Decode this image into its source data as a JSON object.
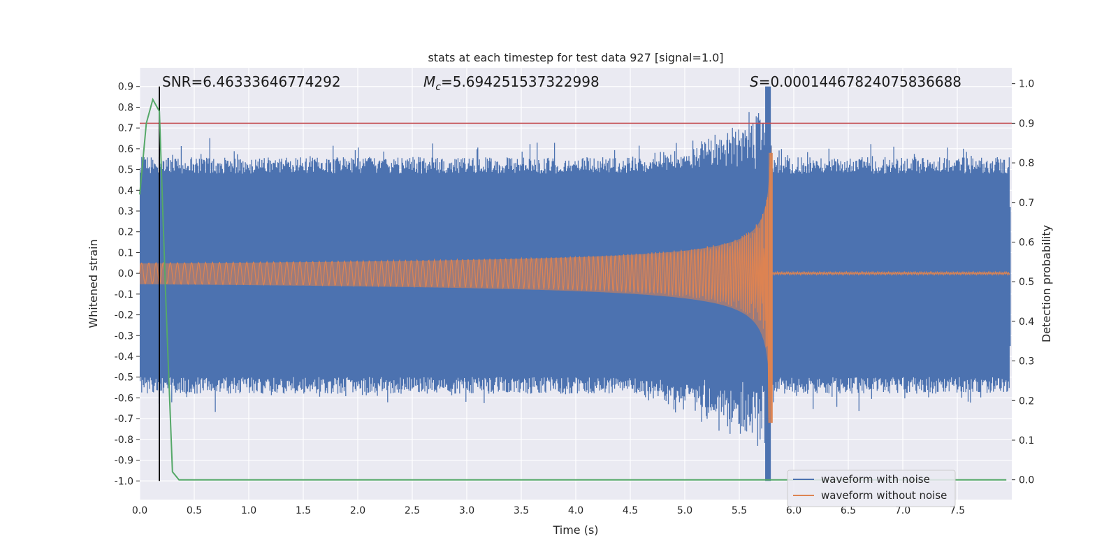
{
  "chart_data": {
    "type": "line",
    "title": "stats at each timestep for test data 927 [signal=1.0]",
    "xlabel": "Time (s)",
    "ylabel": "Whitened strain",
    "y2label": "Detection probability",
    "xlim": [
      0.0,
      8.0
    ],
    "ylim": [
      -1.09,
      0.99
    ],
    "y2lim": [
      -0.05,
      1.04
    ],
    "xticks": [
      "0.0",
      "0.5",
      "1.0",
      "1.5",
      "2.0",
      "2.5",
      "3.0",
      "3.5",
      "4.0",
      "4.5",
      "5.0",
      "5.5",
      "6.0",
      "6.5",
      "7.0",
      "7.5"
    ],
    "yticks": [
      "0.9",
      "0.8",
      "0.7",
      "0.6",
      "0.5",
      "0.4",
      "0.3",
      "0.2",
      "0.1",
      "0.0",
      "-0.1",
      "-0.2",
      "-0.3",
      "-0.4",
      "-0.5",
      "-0.6",
      "-0.7",
      "-0.8",
      "-0.9",
      "-1.0"
    ],
    "y2ticks": [
      "1.0",
      "0.9",
      "0.8",
      "0.7",
      "0.6",
      "0.5",
      "0.4",
      "0.3",
      "0.2",
      "0.1",
      "0.0"
    ],
    "annotations": {
      "snr": "SNR=6.46333646774292",
      "mc_symbol": "M",
      "mc_sub": "c",
      "mc_value": "=5.694251537322998",
      "s_symbol": "S",
      "s_value": "=0.00014467824075836688"
    },
    "threshold_probability": 0.9,
    "marker_time": 0.18,
    "merger_time": 5.8,
    "series": [
      {
        "name": "waveform with noise",
        "color": "#4c72b0",
        "axis": "left",
        "description_values": {
          "noise_envelope": 0.5,
          "peak_max": 0.9,
          "peak_min": -1.0
        }
      },
      {
        "name": "waveform without noise",
        "color": "#dd8452",
        "axis": "left",
        "description_values": {
          "start_amplitude": 0.05,
          "peak_max": 0.58,
          "peak_min": -0.72,
          "end_time": 5.8
        }
      },
      {
        "name": "detection probability",
        "color": "#55a868",
        "axis": "right",
        "x": [
          0.0,
          0.06,
          0.12,
          0.18,
          0.24,
          0.3,
          0.36,
          7.95
        ],
        "values": [
          0.72,
          0.9,
          0.96,
          0.93,
          0.45,
          0.02,
          0.0,
          0.0
        ]
      }
    ],
    "threshold_color": "#c44e52",
    "marker_color": "#000000",
    "legend": {
      "position": "lower-right",
      "entries": [
        "waveform with noise",
        "waveform without noise"
      ]
    }
  }
}
